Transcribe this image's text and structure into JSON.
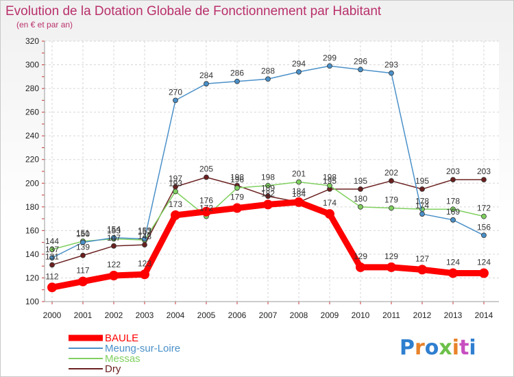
{
  "chart_data": {
    "type": "line",
    "title": "Evolution de la Dotation Globale de Fonctionnement par Habitant",
    "subtitle": "(en € et par an)",
    "xlabel": "",
    "ylabel": "",
    "ylim": [
      100,
      320
    ],
    "yticks": [
      100,
      120,
      140,
      160,
      180,
      200,
      220,
      240,
      260,
      280,
      300,
      320
    ],
    "categories": [
      "2000",
      "2001",
      "2002",
      "2003",
      "2004",
      "2005",
      "2006",
      "2007",
      "2008",
      "2009",
      "2010",
      "2011",
      "2012",
      "2013",
      "2014"
    ],
    "grid": true,
    "legend_position": "bottom-left",
    "series": [
      {
        "name": "BAULE",
        "color": "#ff0000",
        "values": [
          112,
          117,
          122,
          123,
          173,
          176,
          179,
          182,
          184,
          174,
          129,
          129,
          127,
          124,
          124
        ],
        "labels": [
          "112",
          "117",
          "122",
          "123",
          "173",
          "176",
          "179",
          "182",
          "184",
          "174",
          "129",
          "129",
          "127",
          "124",
          "124"
        ]
      },
      {
        "name": "Meung-sur-Loire",
        "color": "#4a90c8",
        "values": [
          137,
          150,
          154,
          153,
          270,
          284,
          286,
          288,
          294,
          299,
          296,
          293,
          174,
          169,
          156
        ],
        "labels": [
          "137",
          "150",
          "154",
          "153",
          "270",
          "284",
          "286",
          "288",
          "294",
          "299",
          "296",
          "293",
          "174",
          "169",
          "156"
        ]
      },
      {
        "name": "Messas",
        "color": "#80d060",
        "values": [
          144,
          151,
          153,
          152,
          193,
          172,
          196,
          198,
          201,
          198,
          180,
          179,
          178,
          178,
          172
        ],
        "labels": [
          "144",
          "151",
          "153",
          "152",
          "193",
          "172",
          "196",
          "198",
          "201",
          "198",
          "180",
          "179",
          "178",
          "178",
          "172"
        ]
      },
      {
        "name": "Dry",
        "color": "#6b2020",
        "values": [
          131,
          139,
          147,
          148,
          197,
          205,
          198,
          189,
          184,
          195,
          195,
          202,
          195,
          203,
          203
        ],
        "labels": [
          "131",
          "139",
          "147",
          "148",
          "197",
          "205",
          "198",
          "189",
          "184",
          "195",
          "195",
          "202",
          "195",
          "203",
          "203"
        ]
      }
    ]
  },
  "logo": {
    "text": "Proxiti"
  }
}
